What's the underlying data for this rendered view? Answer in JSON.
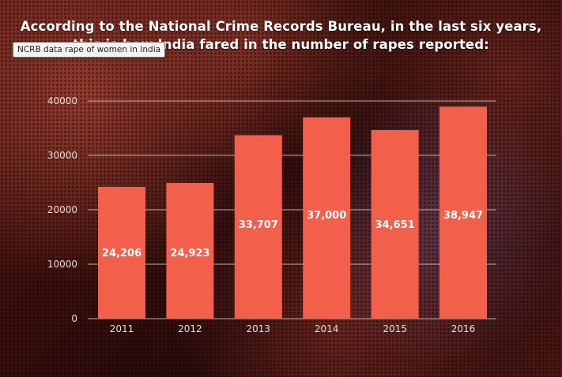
{
  "title": "According to the National Crime Records Bureau, in the last six years, this is how India fared in the number of rapes reported:",
  "tooltip": "NCRB data rape of women in India",
  "colors": {
    "bar": "#f2604c",
    "gridline": "#d8c8c4",
    "axis_text": "#e8dcd8",
    "value_text": "#ffffff"
  },
  "chart_data": {
    "type": "bar",
    "title": "According to the National Crime Records Bureau, in the last six years, this is how India fared in the number of rapes reported:",
    "xlabel": "",
    "ylabel": "",
    "categories": [
      "2011",
      "2012",
      "2013",
      "2014",
      "2015",
      "2016"
    ],
    "values": [
      24206,
      24923,
      33707,
      37000,
      34651,
      38947
    ],
    "value_labels": [
      "24,206",
      "24,923",
      "33,707",
      "37,000",
      "34,651",
      "38,947"
    ],
    "yticks": [
      0,
      10000,
      20000,
      30000,
      40000
    ],
    "ytick_labels": [
      "0",
      "10000",
      "20000",
      "30000",
      "40000"
    ],
    "ylim": [
      0,
      40000
    ],
    "grid": true,
    "legend": "none"
  }
}
